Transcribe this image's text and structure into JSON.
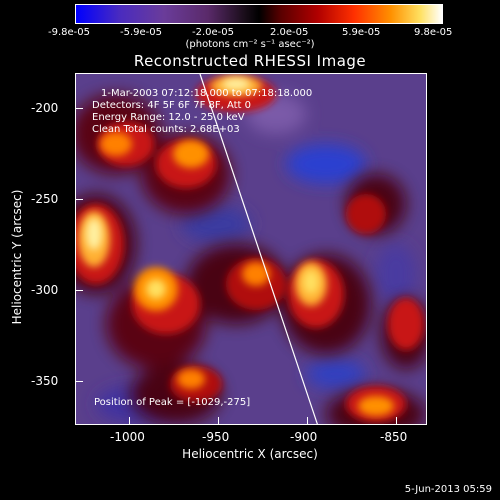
{
  "colorbar": {
    "tick_labels": [
      "-9.8e-05",
      "-5.9e-05",
      "-2.0e-05",
      "2.0e-05",
      "5.9e-05",
      "9.8e-05"
    ],
    "units": "(photons cm⁻² s⁻¹ asec⁻²)"
  },
  "title": "Reconstructed RHESSI Image",
  "annotations": {
    "time_range": "1-Mar-2003 07:12:18.000 to 07:18:18.000",
    "detectors": "Detectors: 4F 5F 6F 7F 8F, Att 0",
    "energy_range": "Energy Range: 12.0 - 25.0 keV",
    "clean": "Clean    Total counts: 2.68E+03",
    "peak": "Position of Peak = [-1029,-275]"
  },
  "axes": {
    "xlabel": "Heliocentric X (arcsec)",
    "ylabel": "Heliocentric Y (arcsec)",
    "x_ticks": [
      "-1000",
      "-950",
      "-900",
      "-850"
    ],
    "y_ticks": [
      "-200",
      "-250",
      "-300",
      "-350"
    ]
  },
  "timestamp": "5-Jun-2013 05:59"
}
